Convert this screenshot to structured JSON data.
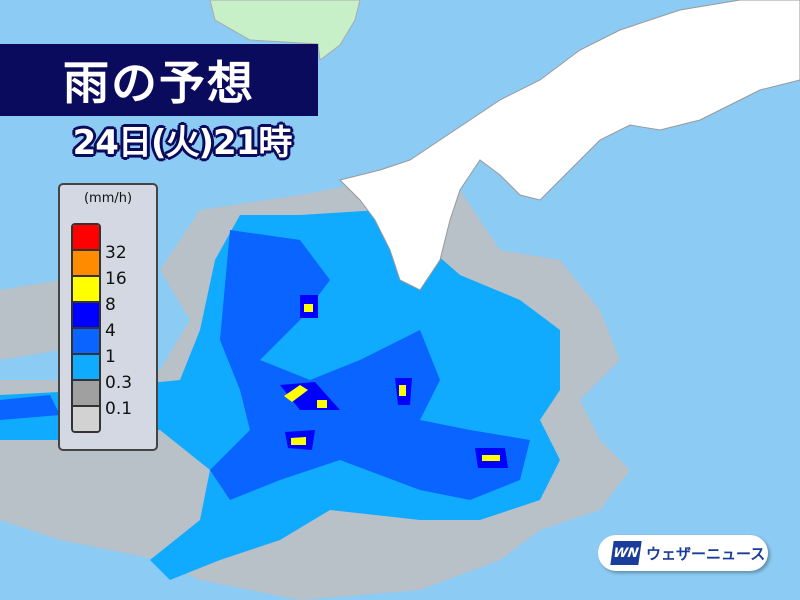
{
  "title": "雨の予想",
  "datetime": "24日(火)21時",
  "legend": {
    "unit": "(mm/h)",
    "levels": [
      {
        "label": "32",
        "color": "#ff0000"
      },
      {
        "label": "16",
        "color": "#ff8c00"
      },
      {
        "label": "8",
        "color": "#ffff00"
      },
      {
        "label": "4",
        "color": "#0000ff"
      },
      {
        "label": "1",
        "color": "#0a64ff"
      },
      {
        "label": "0.3",
        "color": "#10aaff"
      },
      {
        "label": "0.1",
        "color": "#a0a0a0"
      },
      {
        "label": "",
        "color": "#d2d2d2"
      }
    ],
    "top_color": "#ff0000"
  },
  "colors": {
    "sea": "#8ccbf3",
    "land": "#ffffff",
    "foreign_land": "#c8f0c8",
    "title_bg": "#0b0b5e"
  },
  "brand": {
    "mark": "WN",
    "name": "ウェザーニュース"
  }
}
